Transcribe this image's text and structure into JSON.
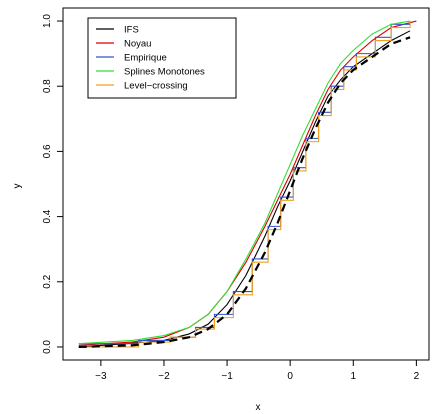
{
  "chart_data": {
    "type": "line",
    "xlabel": "x",
    "ylabel": "y",
    "xlim": [
      -3.6,
      2.2
    ],
    "ylim": [
      -0.04,
      1.04
    ],
    "x_ticks": [
      -3,
      -2,
      -1,
      0,
      1,
      2
    ],
    "x_tick_labels": [
      "−3",
      "−2",
      "−1",
      "0",
      "1",
      "2"
    ],
    "y_ticks": [
      0.0,
      0.2,
      0.4,
      0.6,
      0.8,
      1.0
    ],
    "y_tick_labels": [
      "0.0",
      "0.2",
      "0.4",
      "0.6",
      "0.8",
      "1.0"
    ],
    "grid": false,
    "legend_position": "top-left",
    "series": [
      {
        "name": "IFS",
        "color": "#000000",
        "style": "solid",
        "x": [
          -3.35,
          -2.6,
          -2.0,
          -1.6,
          -1.3,
          -1.0,
          -0.7,
          -0.4,
          -0.2,
          0.0,
          0.2,
          0.4,
          0.6,
          0.8,
          1.0,
          1.3,
          1.6,
          1.9
        ],
        "y": [
          0.0,
          0.01,
          0.02,
          0.04,
          0.07,
          0.13,
          0.22,
          0.34,
          0.43,
          0.51,
          0.6,
          0.69,
          0.77,
          0.82,
          0.86,
          0.9,
          0.94,
          0.97
        ]
      },
      {
        "name": "Noyau",
        "color": "#dd0000",
        "style": "solid",
        "x": [
          -3.35,
          -2.5,
          -2.0,
          -1.6,
          -1.3,
          -1.0,
          -0.7,
          -0.4,
          -0.2,
          0.0,
          0.2,
          0.4,
          0.6,
          0.8,
          1.0,
          1.3,
          1.6,
          2.0
        ],
        "y": [
          0.005,
          0.015,
          0.03,
          0.06,
          0.1,
          0.17,
          0.26,
          0.37,
          0.45,
          0.53,
          0.62,
          0.71,
          0.79,
          0.85,
          0.89,
          0.94,
          0.98,
          1.0
        ]
      },
      {
        "name": "Empirique",
        "color": "#3355cc",
        "style": "step",
        "x": [
          -3.35,
          -2.4,
          -1.9,
          -1.5,
          -1.2,
          -0.9,
          -0.6,
          -0.35,
          -0.15,
          0.05,
          0.25,
          0.45,
          0.65,
          0.85,
          1.05,
          1.35,
          1.6,
          1.9
        ],
        "y": [
          0.01,
          0.02,
          0.03,
          0.06,
          0.1,
          0.17,
          0.27,
          0.37,
          0.46,
          0.55,
          0.64,
          0.72,
          0.8,
          0.86,
          0.9,
          0.95,
          0.99,
          1.0
        ]
      },
      {
        "name": "Splines Monotones",
        "color": "#33dd33",
        "style": "solid",
        "x": [
          -3.35,
          -2.5,
          -2.0,
          -1.6,
          -1.3,
          -1.0,
          -0.7,
          -0.4,
          -0.2,
          0.0,
          0.2,
          0.4,
          0.6,
          0.8,
          1.0,
          1.3,
          1.6,
          1.9
        ],
        "y": [
          0.01,
          0.02,
          0.035,
          0.06,
          0.1,
          0.17,
          0.27,
          0.38,
          0.47,
          0.56,
          0.65,
          0.73,
          0.81,
          0.87,
          0.91,
          0.96,
          0.99,
          1.0
        ]
      },
      {
        "name": "Level−crossing",
        "color": "#f0a020",
        "style": "step",
        "x": [
          -3.35,
          -2.4,
          -1.9,
          -1.5,
          -1.2,
          -0.9,
          -0.6,
          -0.35,
          -0.15,
          0.05,
          0.25,
          0.45,
          0.65,
          0.85,
          1.05,
          1.35,
          1.6,
          1.9
        ],
        "y": [
          0.0,
          0.015,
          0.03,
          0.055,
          0.09,
          0.16,
          0.26,
          0.36,
          0.45,
          0.54,
          0.63,
          0.71,
          0.79,
          0.85,
          0.89,
          0.94,
          0.98,
          1.0
        ]
      },
      {
        "name": "",
        "color": "#000000",
        "style": "dashed",
        "x": [
          -3.35,
          -2.5,
          -2.0,
          -1.6,
          -1.3,
          -1.0,
          -0.7,
          -0.4,
          -0.2,
          0.0,
          0.2,
          0.4,
          0.6,
          0.8,
          1.0,
          1.3,
          1.6,
          1.9
        ],
        "y": [
          0.0,
          0.005,
          0.015,
          0.03,
          0.055,
          0.1,
          0.18,
          0.29,
          0.38,
          0.48,
          0.58,
          0.67,
          0.75,
          0.81,
          0.85,
          0.89,
          0.93,
          0.95
        ]
      }
    ]
  }
}
